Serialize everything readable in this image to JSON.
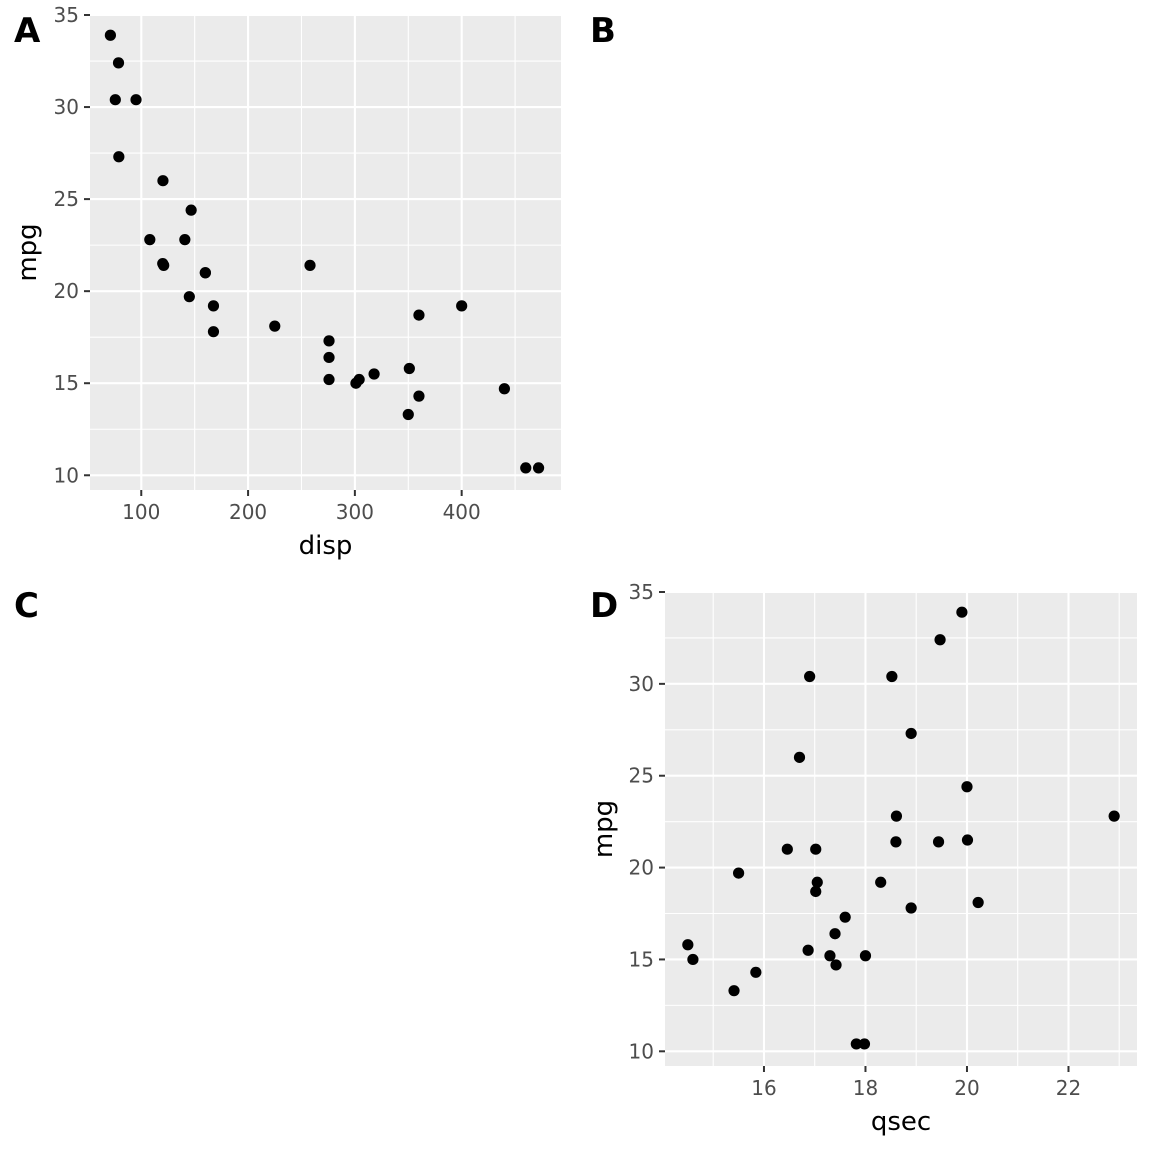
{
  "panel_tags": [
    "A",
    "B",
    "C",
    "D"
  ],
  "chart_data": [
    {
      "tag": "A",
      "type": "scatter",
      "xlabel": "disp",
      "ylabel": "mpg",
      "xlim": [
        52,
        493
      ],
      "ylim": [
        9.2,
        35.0
      ],
      "x_ticks": [
        100,
        200,
        300,
        400
      ],
      "y_ticks": [
        10,
        15,
        20,
        25,
        30,
        35
      ],
      "grid": true,
      "points": [
        {
          "x": 160,
          "y": 21.0
        },
        {
          "x": 160,
          "y": 21.0
        },
        {
          "x": 108,
          "y": 22.8
        },
        {
          "x": 258,
          "y": 21.4
        },
        {
          "x": 360,
          "y": 18.7
        },
        {
          "x": 225,
          "y": 18.1
        },
        {
          "x": 360,
          "y": 14.3
        },
        {
          "x": 146.7,
          "y": 24.4
        },
        {
          "x": 140.8,
          "y": 22.8
        },
        {
          "x": 167.6,
          "y": 19.2
        },
        {
          "x": 167.6,
          "y": 17.8
        },
        {
          "x": 275.8,
          "y": 16.4
        },
        {
          "x": 275.8,
          "y": 17.3
        },
        {
          "x": 275.8,
          "y": 15.2
        },
        {
          "x": 472,
          "y": 10.4
        },
        {
          "x": 460,
          "y": 10.4
        },
        {
          "x": 440,
          "y": 14.7
        },
        {
          "x": 78.7,
          "y": 32.4
        },
        {
          "x": 75.7,
          "y": 30.4
        },
        {
          "x": 71.1,
          "y": 33.9
        },
        {
          "x": 120.1,
          "y": 21.5
        },
        {
          "x": 318,
          "y": 15.5
        },
        {
          "x": 304,
          "y": 15.2
        },
        {
          "x": 350,
          "y": 13.3
        },
        {
          "x": 400,
          "y": 19.2
        },
        {
          "x": 79,
          "y": 27.3
        },
        {
          "x": 120.3,
          "y": 26.0
        },
        {
          "x": 95.1,
          "y": 30.4
        },
        {
          "x": 351,
          "y": 15.8
        },
        {
          "x": 145,
          "y": 19.7
        },
        {
          "x": 301,
          "y": 15.0
        },
        {
          "x": 121,
          "y": 21.4
        }
      ]
    },
    {
      "tag": "D",
      "type": "scatter",
      "xlabel": "qsec",
      "ylabel": "mpg",
      "xlim": [
        14.05,
        23.35
      ],
      "ylim": [
        9.2,
        35.0
      ],
      "x_ticks": [
        16,
        18,
        20,
        22
      ],
      "y_ticks": [
        10,
        15,
        20,
        25,
        30,
        35
      ],
      "grid": true,
      "points": [
        {
          "x": 16.46,
          "y": 21.0
        },
        {
          "x": 17.02,
          "y": 21.0
        },
        {
          "x": 18.61,
          "y": 22.8
        },
        {
          "x": 19.44,
          "y": 21.4
        },
        {
          "x": 17.02,
          "y": 18.7
        },
        {
          "x": 20.22,
          "y": 18.1
        },
        {
          "x": 15.84,
          "y": 14.3
        },
        {
          "x": 20.0,
          "y": 24.4
        },
        {
          "x": 22.9,
          "y": 22.8
        },
        {
          "x": 18.3,
          "y": 19.2
        },
        {
          "x": 18.9,
          "y": 17.8
        },
        {
          "x": 17.4,
          "y": 16.4
        },
        {
          "x": 17.6,
          "y": 17.3
        },
        {
          "x": 18.0,
          "y": 15.2
        },
        {
          "x": 17.98,
          "y": 10.4
        },
        {
          "x": 17.82,
          "y": 10.4
        },
        {
          "x": 17.42,
          "y": 14.7
        },
        {
          "x": 19.47,
          "y": 32.4
        },
        {
          "x": 18.52,
          "y": 30.4
        },
        {
          "x": 19.9,
          "y": 33.9
        },
        {
          "x": 20.01,
          "y": 21.5
        },
        {
          "x": 16.87,
          "y": 15.5
        },
        {
          "x": 17.3,
          "y": 15.2
        },
        {
          "x": 15.41,
          "y": 13.3
        },
        {
          "x": 17.05,
          "y": 19.2
        },
        {
          "x": 18.9,
          "y": 27.3
        },
        {
          "x": 16.7,
          "y": 26.0
        },
        {
          "x": 16.9,
          "y": 30.4
        },
        {
          "x": 14.5,
          "y": 15.8
        },
        {
          "x": 15.5,
          "y": 19.7
        },
        {
          "x": 14.6,
          "y": 15.0
        },
        {
          "x": 18.6,
          "y": 21.4
        }
      ]
    }
  ],
  "colors": {
    "panel_background": "#ebebeb",
    "grid": "#ffffff",
    "point": "#000000",
    "tick_label": "#4d4d4d"
  }
}
